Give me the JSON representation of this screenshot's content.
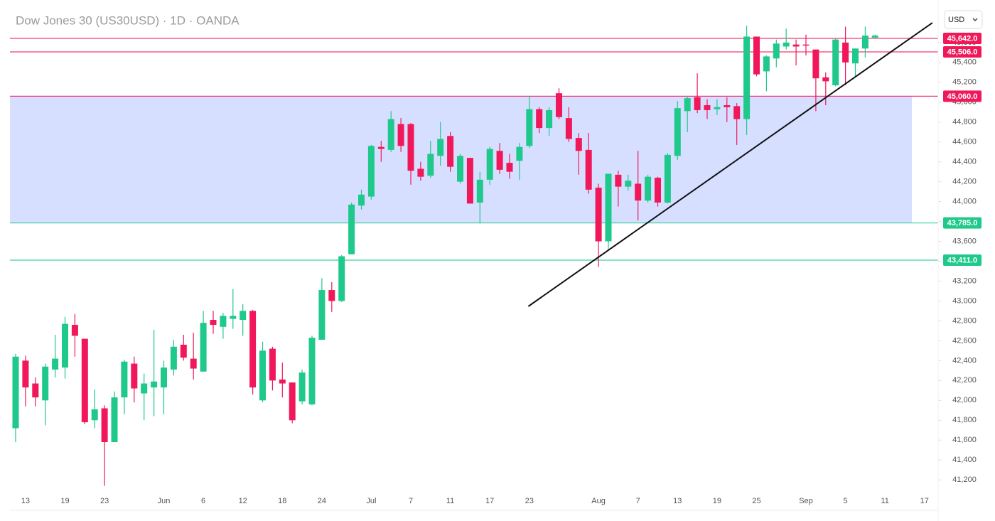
{
  "chart_data": {
    "type": "candlestick",
    "title": "Dow Jones 30 (US30USD) · 1D · OANDA",
    "currency": "USD",
    "up_color": "#1fc98c",
    "down_color": "#f0185a",
    "categories": [
      null,
      "13",
      null,
      null,
      null,
      "19",
      null,
      null,
      null,
      "23",
      null,
      null,
      null,
      null,
      null,
      "Jun",
      null,
      null,
      null,
      "6",
      null,
      null,
      null,
      "12",
      null,
      null,
      null,
      "18",
      null,
      null,
      null,
      "24",
      null,
      null,
      null,
      null,
      "Jul",
      null,
      null,
      null,
      "7",
      null,
      null,
      null,
      "11",
      null,
      null,
      null,
      "17",
      null,
      null,
      null,
      "23",
      null,
      null,
      null,
      null,
      null,
      null,
      "Aug",
      null,
      null,
      null,
      "7",
      null,
      null,
      null,
      "13",
      null,
      null,
      null,
      "19",
      null,
      null,
      null,
      "25",
      null,
      null,
      null,
      null,
      "Sep",
      null,
      null,
      null,
      "5",
      null,
      null,
      null,
      "11",
      null,
      null,
      null,
      "17"
    ],
    "open": [
      41720,
      42400,
      42170,
      42000,
      42310,
      42330,
      42760,
      42620,
      41800,
      41920,
      41580,
      42030,
      42370,
      42070,
      42130,
      42130,
      42310,
      42560,
      42420,
      42290,
      42810,
      42740,
      42820,
      42810,
      42900,
      42000,
      42520,
      42210,
      42180,
      41990,
      41960,
      42610,
      43110,
      43000,
      43470,
      43960,
      44050,
      44550,
      44520,
      44780,
      44780,
      44330,
      44260,
      44460,
      44660,
      44200,
      44440,
      43990,
      44220,
      44510,
      44390,
      44410,
      44560,
      44930,
      44740,
      45090,
      44840,
      44640,
      44520,
      44140,
      43600,
      44270,
      44150,
      44180,
      44010,
      44240,
      43990,
      44460,
      44910,
      45050,
      44970,
      44930,
      44970,
      44960,
      44830,
      45660,
      45310,
      45440,
      45560,
      45580,
      45580,
      45530,
      45250,
      45170,
      45600,
      45390,
      45540,
      45650,
      null,
      null,
      null,
      null,
      null
    ],
    "high": [
      42470,
      42450,
      42230,
      42370,
      42660,
      42840,
      42870,
      42620,
      42110,
      41950,
      42090,
      42410,
      42440,
      42270,
      42710,
      42400,
      42610,
      42660,
      42680,
      42900,
      42900,
      42880,
      43120,
      42970,
      42910,
      42590,
      42540,
      42380,
      42180,
      42310,
      42650,
      43230,
      43190,
      43460,
      43990,
      44120,
      44570,
      44610,
      44910,
      44840,
      44790,
      44400,
      44610,
      44800,
      44700,
      44480,
      44440,
      44300,
      44550,
      44590,
      44480,
      44590,
      45060,
      44950,
      44950,
      45140,
      44950,
      44690,
      44690,
      44180,
      44280,
      44310,
      44270,
      44510,
      44270,
      44250,
      44490,
      45010,
      45060,
      45290,
      45030,
      45030,
      45050,
      44990,
      45770,
      45660,
      45470,
      45630,
      45740,
      45630,
      45680,
      45530,
      45300,
      45640,
      45760,
      45540,
      45760,
      45680,
      null,
      null,
      null,
      null,
      null
    ],
    "low": [
      41580,
      41940,
      41940,
      41750,
      42230,
      42220,
      42440,
      41760,
      41720,
      41140,
      41580,
      41860,
      41980,
      41800,
      41840,
      41860,
      42250,
      42400,
      42210,
      42290,
      42670,
      42620,
      42720,
      42650,
      42060,
      41980,
      42100,
      42030,
      41770,
      41960,
      41950,
      42610,
      42890,
      42990,
      43470,
      43920,
      44020,
      44400,
      44500,
      44500,
      44170,
      44210,
      44240,
      44360,
      44300,
      44180,
      43980,
      43780,
      44170,
      44280,
      44230,
      44220,
      44540,
      44690,
      44660,
      44830,
      44600,
      44270,
      44080,
      43340,
      43520,
      43950,
      44110,
      43810,
      43990,
      43950,
      43980,
      44420,
      44700,
      44890,
      44830,
      44870,
      44800,
      44570,
      44670,
      45260,
      45110,
      45350,
      45530,
      45370,
      45470,
      44910,
      44970,
      45160,
      45170,
      45260,
      45450,
      45640,
      null,
      null,
      null,
      null,
      null
    ],
    "close": [
      42440,
      42130,
      42030,
      42340,
      42420,
      42770,
      42650,
      41780,
      41910,
      41580,
      42030,
      42390,
      42120,
      42170,
      42190,
      42330,
      42540,
      42430,
      42320,
      42780,
      42760,
      42850,
      42850,
      42900,
      42130,
      42500,
      42200,
      42170,
      41800,
      42280,
      42630,
      43110,
      43000,
      43450,
      43970,
      44070,
      44560,
      44530,
      44830,
      44560,
      44310,
      44250,
      44480,
      44630,
      44350,
      44460,
      43980,
      44220,
      44530,
      44320,
      44300,
      44550,
      44930,
      44740,
      44920,
      44850,
      44630,
      44510,
      44120,
      43600,
      44280,
      44150,
      44210,
      44010,
      44250,
      43990,
      44470,
      44940,
      45040,
      44920,
      44920,
      44950,
      44950,
      44830,
      45660,
      45280,
      45460,
      45590,
      45600,
      45560,
      45570,
      45240,
      45210,
      45630,
      45400,
      45540,
      45670,
      45670,
      null,
      null,
      null,
      null,
      null
    ],
    "ylim": [
      41094,
      46028
    ],
    "yticks": [
      {
        "value": 41200,
        "label": "41,200"
      },
      {
        "value": 41400,
        "label": "41,400"
      },
      {
        "value": 41600,
        "label": "41,600"
      },
      {
        "value": 41800,
        "label": "41,800"
      },
      {
        "value": 42000,
        "label": "42,000"
      },
      {
        "value": 42200,
        "label": "42,200"
      },
      {
        "value": 42400,
        "label": "42,400"
      },
      {
        "value": 42600,
        "label": "42,600"
      },
      {
        "value": 42800,
        "label": "42,800"
      },
      {
        "value": 43000,
        "label": "43,000"
      },
      {
        "value": 43200,
        "label": "43,200"
      },
      {
        "value": 43400,
        "label": "43,400"
      },
      {
        "value": 43600,
        "label": "43,600"
      },
      {
        "value": 43800,
        "label": "43,800"
      },
      {
        "value": 44000,
        "label": "44,000"
      },
      {
        "value": 44200,
        "label": "44,200"
      },
      {
        "value": 44400,
        "label": "44,400"
      },
      {
        "value": 44600,
        "label": "44,600"
      },
      {
        "value": 44800,
        "label": "44,800"
      },
      {
        "value": 45000,
        "label": "45,000"
      },
      {
        "value": 45200,
        "label": "45,200"
      },
      {
        "value": 45400,
        "label": "45,400"
      },
      {
        "value": 45600,
        "label": "45,600"
      }
    ],
    "zones": [
      {
        "from": 43785,
        "to": 45060,
        "color": "rgba(120,150,255,0.3)"
      }
    ],
    "price_lines": [
      {
        "value": 45642,
        "label": "45,642.0",
        "color": "#f0185a"
      },
      {
        "value": 45506,
        "label": "45,506.0",
        "color": "#f0185a"
      },
      {
        "value": 45060,
        "label": "45,060.0",
        "color": "#f0185a"
      },
      {
        "value": 43785,
        "label": "43,785.0",
        "color": "#1fc98c"
      },
      {
        "value": 43411,
        "label": "43,411.0",
        "color": "#1fc98c"
      }
    ],
    "trendline": {
      "x": [
        51.9,
        92.8
      ],
      "y": [
        42946,
        45799
      ],
      "color": "#111111"
    }
  }
}
